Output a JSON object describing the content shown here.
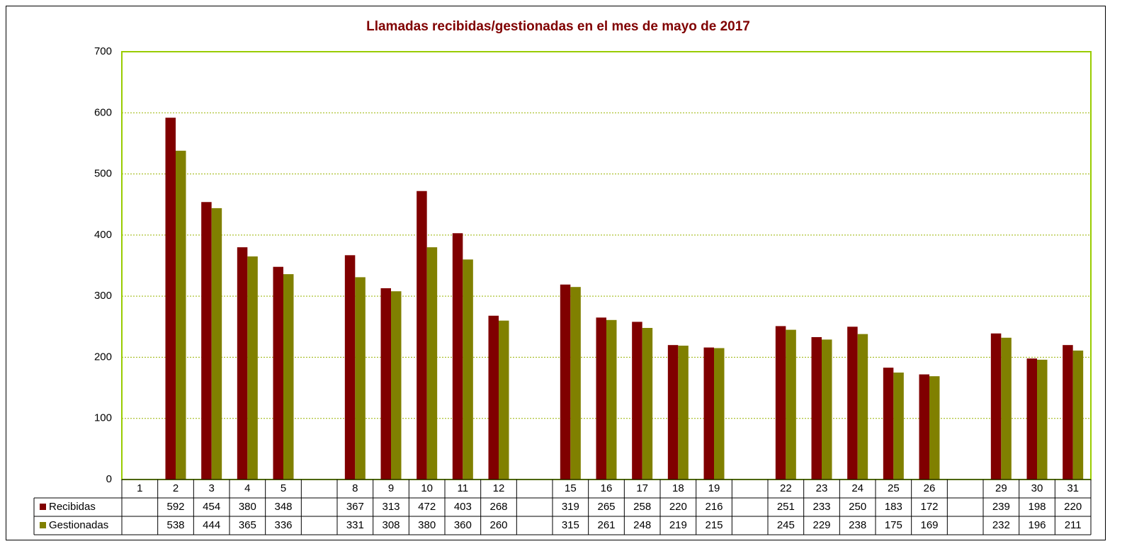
{
  "chart_data": {
    "type": "bar",
    "title": "Llamadas recibidas/gestionadas en el mes de mayo de 2017",
    "categories": [
      "1",
      "2",
      "3",
      "4",
      "5",
      null,
      "8",
      "9",
      "10",
      "11",
      "12",
      null,
      "15",
      "16",
      "17",
      "18",
      "19",
      null,
      "22",
      "23",
      "24",
      "25",
      "26",
      null,
      "29",
      "30",
      "31"
    ],
    "series": [
      {
        "name": "Recibidas",
        "color": "#800000",
        "values": [
          null,
          592,
          454,
          380,
          348,
          null,
          367,
          313,
          472,
          403,
          268,
          null,
          319,
          265,
          258,
          220,
          216,
          null,
          251,
          233,
          250,
          183,
          172,
          null,
          239,
          198,
          220
        ]
      },
      {
        "name": "Gestionadas",
        "color": "#808000",
        "values": [
          null,
          538,
          444,
          365,
          336,
          null,
          331,
          308,
          380,
          360,
          260,
          null,
          315,
          261,
          248,
          219,
          215,
          null,
          245,
          229,
          238,
          175,
          169,
          null,
          232,
          196,
          211
        ]
      }
    ],
    "ylim": [
      0,
      700
    ],
    "yticks": [
      0,
      100,
      200,
      300,
      400,
      500,
      600,
      700
    ],
    "grid": true,
    "data_table": true
  }
}
